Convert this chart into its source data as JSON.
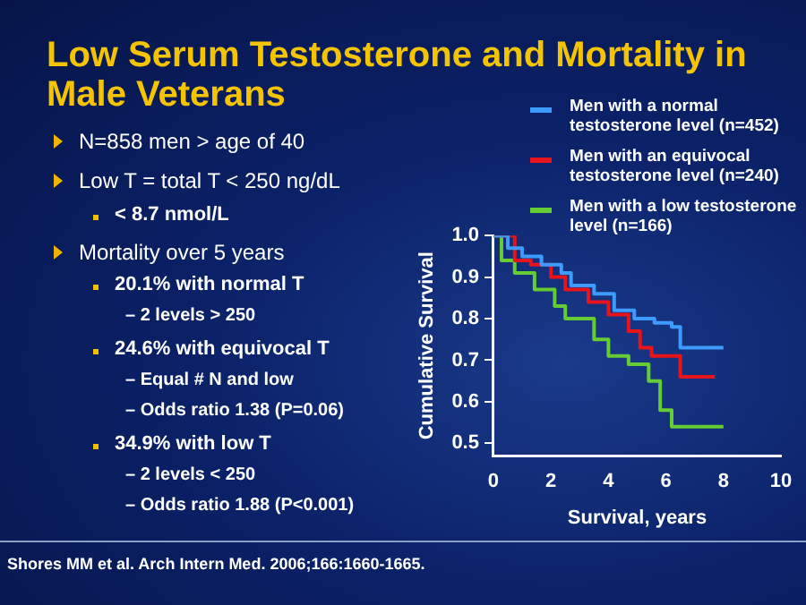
{
  "chart_data": {
    "type": "step",
    "title": "Low Serum Testosterone and Mortality in Male Veterans",
    "xlabel": "Survival, years",
    "ylabel": "Cumulative Survival",
    "xlim": [
      0,
      10
    ],
    "xticks": [
      0,
      2,
      4,
      6,
      8,
      10
    ],
    "ylim": [
      0.47,
      1.0
    ],
    "yticks": [
      0.5,
      0.6,
      0.7,
      0.8,
      0.9,
      {
        "value": 1.0,
        "label": "1.0"
      }
    ],
    "grid": false,
    "legend": "top right",
    "series": [
      {
        "name": "Men with a normal testosterone level (n=452)",
        "color": "#3d9bff",
        "x": [
          0,
          0.5,
          1,
          1.67,
          2.36,
          2.7,
          3.5,
          4.2,
          4.9,
          5.6,
          6.2,
          6.5,
          8
        ],
        "values": [
          1.0,
          0.97,
          0.95,
          0.93,
          0.91,
          0.88,
          0.86,
          0.82,
          0.8,
          0.79,
          0.78,
          0.73,
          0.73
        ]
      },
      {
        "name": "Men with an equivocal testosterone level (n=240)",
        "color": "#e8141c",
        "x": [
          0,
          0.74,
          1.3,
          2.0,
          2.5,
          3.3,
          4.0,
          4.7,
          5.1,
          5.5,
          6.5,
          7.7
        ],
        "values": [
          1.0,
          0.94,
          0.93,
          0.9,
          0.87,
          0.84,
          0.81,
          0.77,
          0.73,
          0.71,
          0.66,
          0.66
        ]
      },
      {
        "name": "Men with a low testosterone level (n=166)",
        "color": "#66cc33",
        "x": [
          0,
          0.28,
          0.74,
          1.43,
          2.13,
          2.5,
          3.5,
          4.0,
          4.7,
          5.4,
          5.8,
          6.2,
          8
        ],
        "values": [
          1.0,
          0.94,
          0.91,
          0.87,
          0.83,
          0.8,
          0.75,
          0.71,
          0.69,
          0.65,
          0.58,
          0.54,
          0.54
        ]
      }
    ],
    "annotations": [
      "N=858 men > age of 40",
      "Low T = total T < 250 ng/dL",
      "< 8.7 nmol/L",
      "Mortality over 5 years",
      "20.1% with normal T",
      "– 2 levels > 250",
      "24.6% with equivocal T",
      "– Equal # N and low",
      "– Odds ratio 1.38 (P=0.06)",
      "34.9% with low T",
      "– 2 levels < 250",
      "– Odds ratio 1.88 (P<0.001)",
      "Shores MM et al. Arch Intern Med. 2006;166:1660-1665."
    ]
  }
}
